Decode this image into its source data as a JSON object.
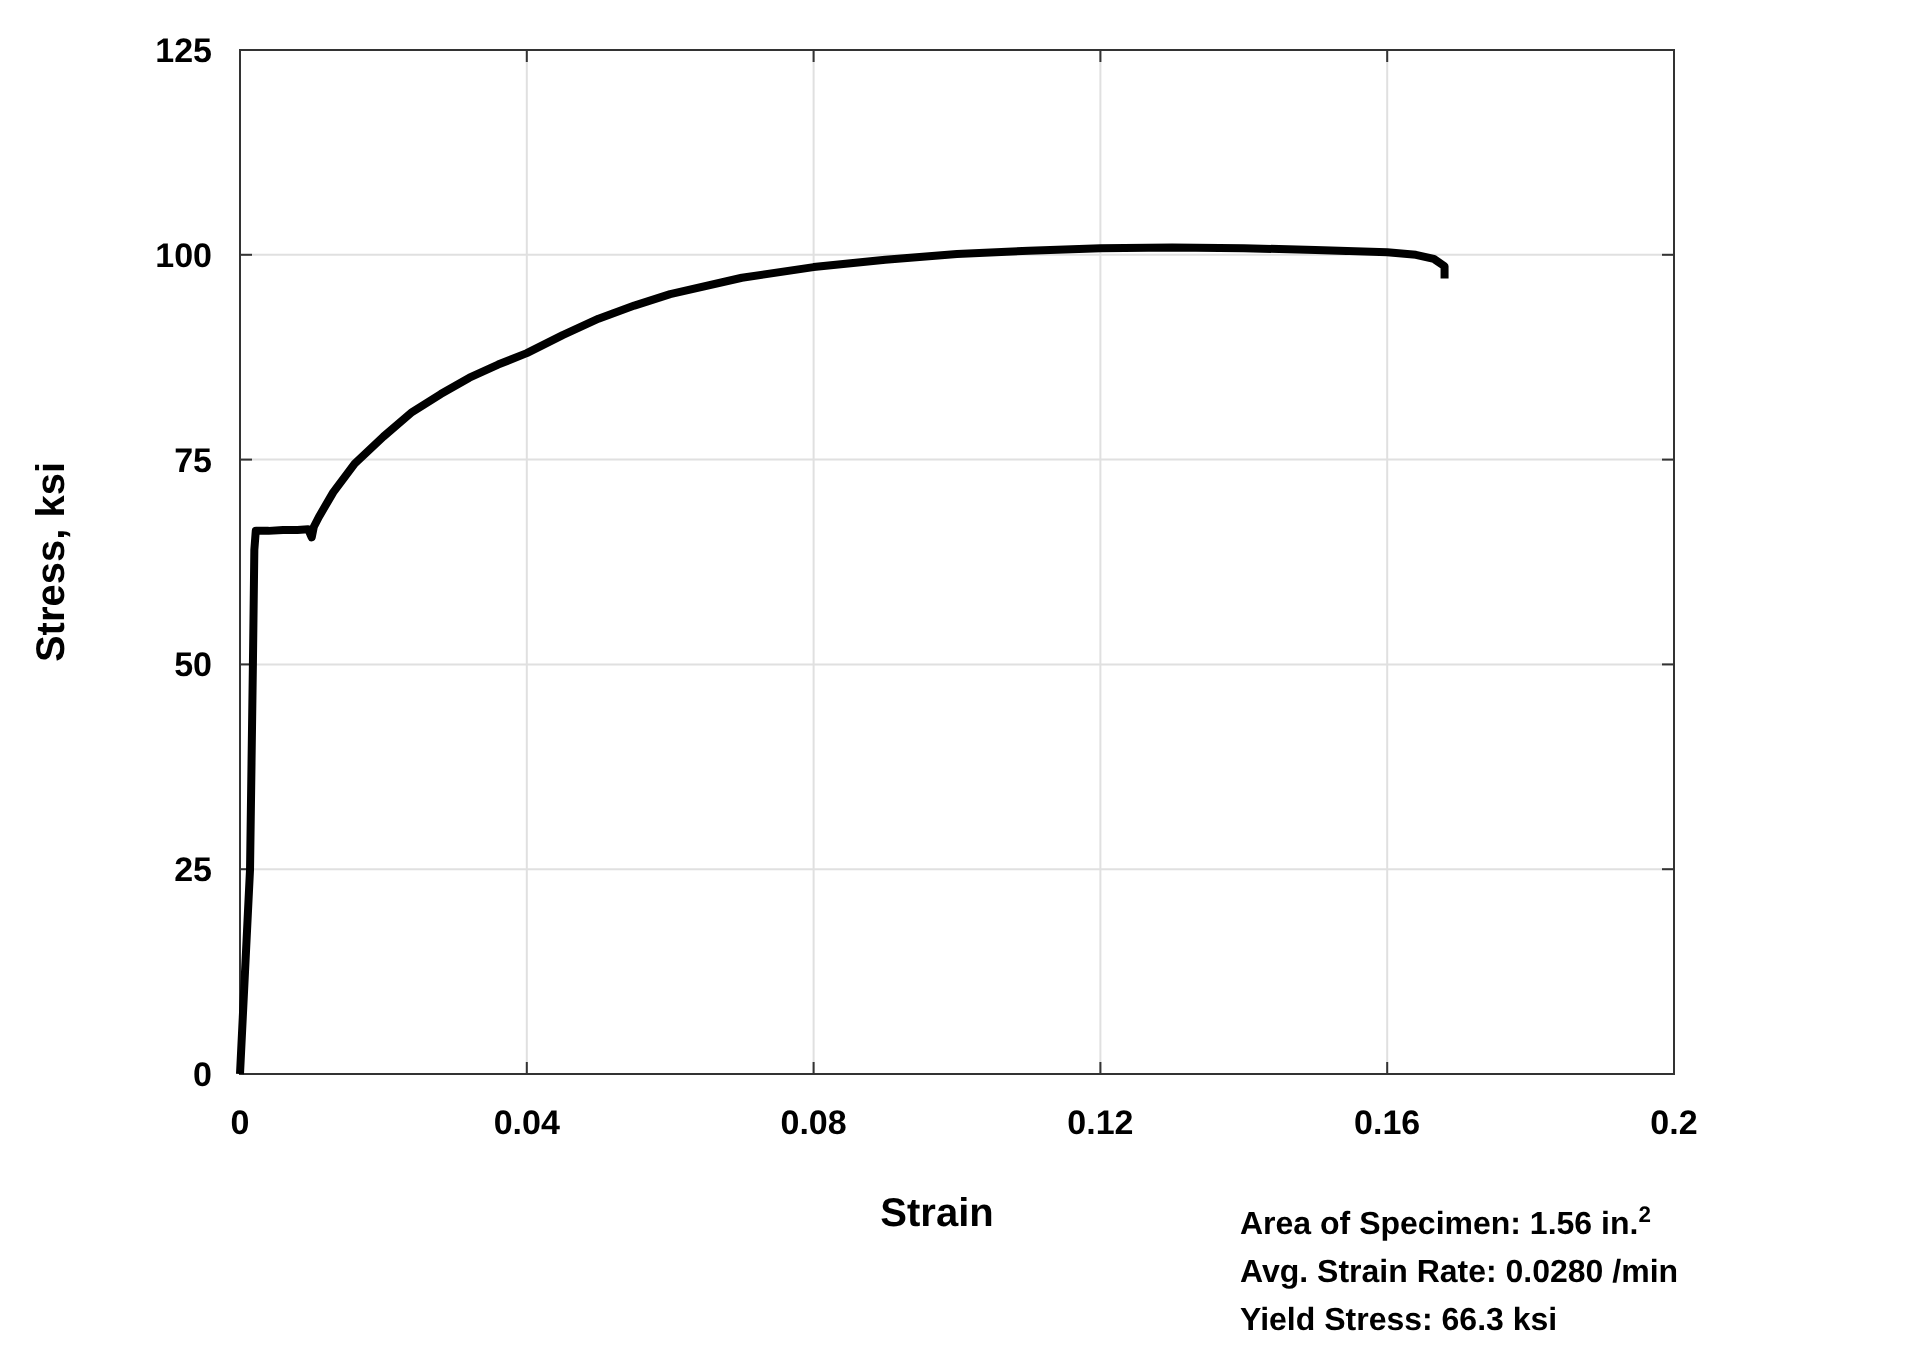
{
  "chart_data": {
    "type": "line",
    "xlabel": "Strain",
    "ylabel": "Stress, ksi",
    "xlim": [
      0,
      0.2
    ],
    "xticks": [
      0,
      0.04,
      0.08,
      0.12,
      0.16,
      0.2
    ],
    "ylim": [
      0,
      125
    ],
    "yticks": [
      0,
      25,
      50,
      75,
      100,
      125
    ],
    "grid": true,
    "marker": "none",
    "line_style": "solid",
    "series": [
      {
        "color": "#000000",
        "x": [
          0,
          0.0007,
          0.0014,
          0.0018,
          0.002,
          0.0022,
          0.004,
          0.006,
          0.008,
          0.0095,
          0.01,
          0.0103,
          0.011,
          0.013,
          0.016,
          0.02,
          0.024,
          0.028,
          0.032,
          0.036,
          0.04,
          0.045,
          0.05,
          0.055,
          0.06,
          0.07,
          0.08,
          0.09,
          0.1,
          0.11,
          0.12,
          0.13,
          0.14,
          0.15,
          0.16,
          0.164,
          0.1665,
          0.168,
          0.168
        ],
        "values": [
          0,
          12.5,
          25,
          50,
          64,
          66.3,
          66.3,
          66.4,
          66.4,
          66.5,
          65.5,
          66.8,
          68,
          71,
          74.5,
          77.8,
          80.8,
          83,
          85,
          86.6,
          88,
          90.2,
          92.2,
          93.8,
          95.2,
          97.2,
          98.5,
          99.4,
          100.1,
          100.5,
          100.8,
          100.9,
          100.8,
          100.6,
          100.3,
          100.0,
          99.5,
          98.6,
          97.1
        ]
      }
    ],
    "annotations": [
      "Area of Specimen: 1.56 in.$^{2}$",
      "Avg. Strain Rate: 0.0280 /min",
      "Yield Stress: 66.3 ksi"
    ]
  }
}
